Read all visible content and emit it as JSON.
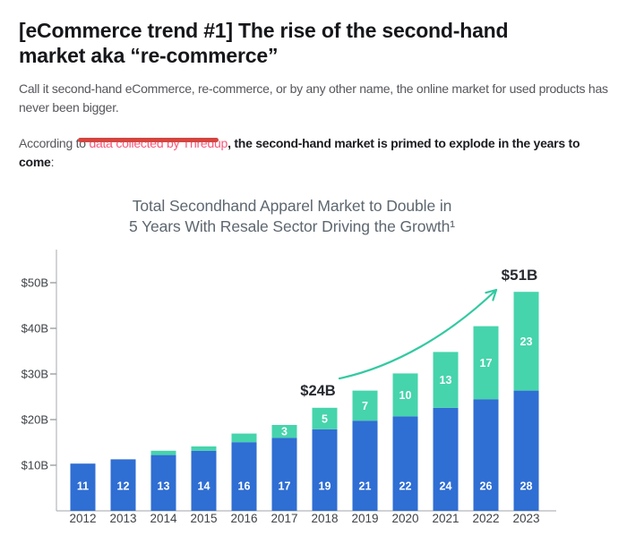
{
  "article": {
    "heading_lines": [
      "[eCommerce trend #1] The rise of the second-hand",
      "market aka “re-commerce”"
    ],
    "intro_lines": [
      "Call it second-hand eCommerce, re-commerce, or by any other name, the online market for used products has",
      "never been bigger."
    ],
    "source": {
      "prefix": "According to ",
      "link_text": "data collected by Thredup",
      "bold_line1": ", the second-hand market is primed to explode in the years to",
      "bold_line2": "come",
      "colon": ":"
    }
  },
  "colors": {
    "link_pink": "#f8587a",
    "annotation_underline_red": "#d4453f",
    "bar_blue": "#2f6ed3",
    "bar_teal": "#46d4ac",
    "arrow_teal": "#33c9a1",
    "axis_line_gray": "#b4b7ba",
    "axis_text_gray": "#3e4247",
    "chart_title_gray": "#5d6770",
    "annotation_text_dark": "#272a30"
  },
  "chart_data": {
    "type": "bar",
    "stacked": true,
    "title": "Total Secondhand Apparel Market to Double in 5 Years With Resale Sector Driving the Growth¹",
    "title_lines": [
      "Total Secondhand Apparel Market to Double in",
      "5 Years With Resale Sector Driving the Growth¹"
    ],
    "categories": [
      "2012",
      "2013",
      "2014",
      "2015",
      "2016",
      "2017",
      "2018",
      "2019",
      "2020",
      "2021",
      "2022",
      "2023"
    ],
    "series": [
      {
        "id": "bottom-segment",
        "color": "#2f6ed3",
        "values": [
          11,
          12,
          13,
          14,
          16,
          17,
          19,
          21,
          22,
          24,
          26,
          28
        ]
      },
      {
        "id": "top-segment",
        "color": "#46d4ac",
        "values": [
          0,
          0,
          1,
          1,
          2,
          3,
          5,
          7,
          10,
          13,
          17,
          23
        ]
      }
    ],
    "segment_label_min": 3,
    "value_label_color": "#ffffff",
    "y_ticks": [
      {
        "label": "$10B",
        "value": 10
      },
      {
        "label": "$20B",
        "value": 20
      },
      {
        "label": "$30B",
        "value": 30
      },
      {
        "label": "$40B",
        "value": 40
      },
      {
        "label": "$50B",
        "value": 50
      }
    ],
    "ylim": [
      0,
      55
    ],
    "grid": false,
    "legend": "none",
    "annotations": [
      {
        "text": "$24B",
        "year": "2018"
      },
      {
        "text": "$51B",
        "year": "2023"
      }
    ],
    "arrow": {
      "from_year": "2018",
      "to_year": "2023",
      "color": "#33c9a1"
    }
  }
}
